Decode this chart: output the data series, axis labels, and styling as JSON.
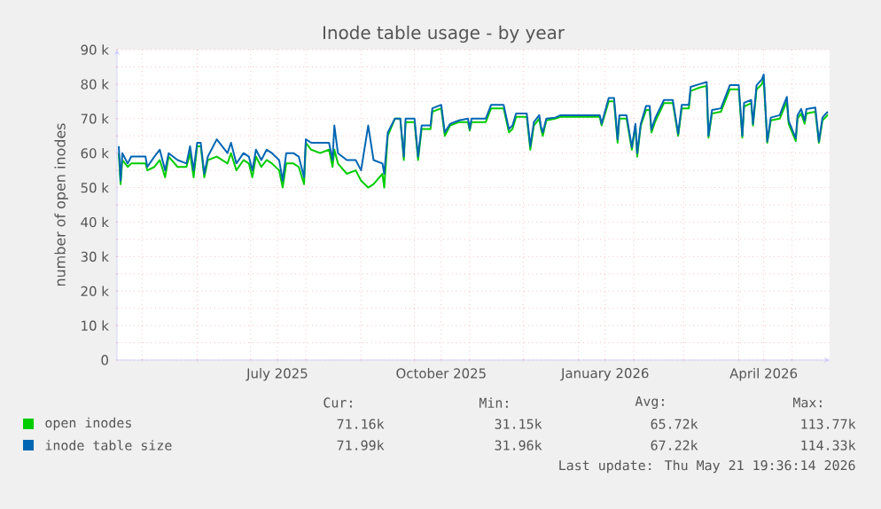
{
  "chart_data": {
    "type": "line",
    "title": "Inode table usage - by year",
    "ylabel": "number of open inodes",
    "xlim": [
      "2025-04-17",
      "2026-05-22"
    ],
    "xticks": [
      {
        "value": "2025-05-01",
        "label": null
      },
      {
        "value": "2025-06-01",
        "label": null
      },
      {
        "value": "2025-07-01",
        "label": null
      },
      {
        "value": "2025-07-16",
        "label": "July 2025"
      },
      {
        "value": "2025-08-01",
        "label": null
      },
      {
        "value": "2025-09-01",
        "label": null
      },
      {
        "value": "2025-10-01",
        "label": null
      },
      {
        "value": "2025-10-16",
        "label": "October 2025"
      },
      {
        "value": "2025-11-01",
        "label": null
      },
      {
        "value": "2025-12-01",
        "label": null
      },
      {
        "value": "2026-01-01",
        "label": null
      },
      {
        "value": "2026-01-16",
        "label": "January 2026"
      },
      {
        "value": "2026-02-01",
        "label": null
      },
      {
        "value": "2026-03-01",
        "label": null
      },
      {
        "value": "2026-04-01",
        "label": null
      },
      {
        "value": "2026-04-15",
        "label": "April 2026"
      },
      {
        "value": "2026-05-01",
        "label": null
      }
    ],
    "ylim": [
      0,
      90000
    ],
    "yticks": [
      {
        "value": 0,
        "label": "0"
      },
      {
        "value": 5000,
        "label": null
      },
      {
        "value": 10000,
        "label": "10 k"
      },
      {
        "value": 15000,
        "label": null
      },
      {
        "value": 20000,
        "label": "20 k"
      },
      {
        "value": 25000,
        "label": null
      },
      {
        "value": 30000,
        "label": "30 k"
      },
      {
        "value": 35000,
        "label": null
      },
      {
        "value": 40000,
        "label": "40 k"
      },
      {
        "value": 45000,
        "label": null
      },
      {
        "value": 50000,
        "label": "50 k"
      },
      {
        "value": 55000,
        "label": null
      },
      {
        "value": 60000,
        "label": "60 k"
      },
      {
        "value": 65000,
        "label": null
      },
      {
        "value": 70000,
        "label": "70 k"
      },
      {
        "value": 75000,
        "label": null
      },
      {
        "value": 80000,
        "label": "80 k"
      },
      {
        "value": 85000,
        "label": null
      },
      {
        "value": 90000,
        "label": "90 k"
      }
    ],
    "grid": true,
    "legend": "bottom",
    "marker": "none",
    "line_style": "solid",
    "x": [
      "2025-04-18",
      "2025-04-19",
      "2025-04-20",
      "2025-04-23",
      "2025-04-25",
      "2025-05-03",
      "2025-05-04",
      "2025-05-08",
      "2025-05-11",
      "2025-05-14",
      "2025-05-16",
      "2025-05-21",
      "2025-05-26",
      "2025-05-28",
      "2025-05-30",
      "2025-06-01",
      "2025-06-03",
      "2025-06-05",
      "2025-06-07",
      "2025-06-12",
      "2025-06-15",
      "2025-06-18",
      "2025-06-20",
      "2025-06-23",
      "2025-06-27",
      "2025-06-30",
      "2025-07-02",
      "2025-07-04",
      "2025-07-07",
      "2025-07-10",
      "2025-07-13",
      "2025-07-17",
      "2025-07-19",
      "2025-07-21",
      "2025-07-25",
      "2025-07-28",
      "2025-07-31",
      "2025-08-01",
      "2025-08-04",
      "2025-08-09",
      "2025-08-14",
      "2025-08-16",
      "2025-08-17",
      "2025-08-19",
      "2025-08-24",
      "2025-08-29",
      "2025-09-01",
      "2025-09-05",
      "2025-09-08",
      "2025-09-13",
      "2025-09-14",
      "2025-09-16",
      "2025-09-20",
      "2025-09-23",
      "2025-09-25",
      "2025-09-26",
      "2025-10-01",
      "2025-10-03",
      "2025-10-05",
      "2025-10-10",
      "2025-10-11",
      "2025-10-16",
      "2025-10-18",
      "2025-10-21",
      "2025-10-26",
      "2025-10-31",
      "2025-11-01",
      "2025-11-02",
      "2025-11-10",
      "2025-11-13",
      "2025-11-20",
      "2025-11-23",
      "2025-11-25",
      "2025-11-27",
      "2025-12-03",
      "2025-12-05",
      "2025-12-07",
      "2025-12-10",
      "2025-12-11",
      "2025-12-12",
      "2025-12-14",
      "2025-12-19",
      "2025-12-22",
      "2026-01-13",
      "2026-01-14",
      "2026-01-18",
      "2026-01-21",
      "2026-01-23",
      "2026-01-24",
      "2026-01-28",
      "2026-01-31",
      "2026-02-02",
      "2026-02-03",
      "2026-02-05",
      "2026-02-08",
      "2026-02-10",
      "2026-02-11",
      "2026-02-13",
      "2026-02-18",
      "2026-02-23",
      "2026-02-26",
      "2026-02-28",
      "2026-03-04",
      "2026-03-05",
      "2026-03-10",
      "2026-03-14",
      "2026-03-15",
      "2026-03-17",
      "2026-03-22",
      "2026-03-27",
      "2026-04-01",
      "2026-04-03",
      "2026-04-04",
      "2026-04-08",
      "2026-04-09",
      "2026-04-11",
      "2026-04-14",
      "2026-04-15",
      "2026-04-17",
      "2026-04-19",
      "2026-04-24",
      "2026-04-26",
      "2026-04-28",
      "2026-04-29",
      "2026-05-01",
      "2026-05-03",
      "2026-05-04",
      "2026-05-06",
      "2026-05-08",
      "2026-05-09",
      "2026-05-14",
      "2026-05-16",
      "2026-05-18",
      "2026-05-20",
      "2026-05-21"
    ],
    "series": [
      {
        "name": "open inodes",
        "color": "#00cc00",
        "values": [
          60000,
          51000,
          58000,
          56000,
          57000,
          57000,
          55000,
          56000,
          58000,
          53000,
          59000,
          56000,
          56000,
          60000,
          53000,
          62000,
          62000,
          53000,
          58000,
          59000,
          58000,
          57000,
          60000,
          55000,
          58000,
          57000,
          53000,
          59000,
          56000,
          58000,
          57000,
          55000,
          50000,
          57000,
          57000,
          56000,
          51000,
          63000,
          61000,
          60000,
          61000,
          56000,
          61000,
          57000,
          54000,
          55000,
          52000,
          50000,
          51000,
          54000,
          50000,
          65000,
          70000,
          70000,
          58000,
          69000,
          69000,
          58000,
          67000,
          67000,
          72000,
          73000,
          65000,
          68000,
          69000,
          69000,
          66500,
          69000,
          69000,
          73000,
          73000,
          66000,
          67000,
          70500,
          70500,
          61000,
          68000,
          70000,
          67000,
          65000,
          69500,
          70000,
          70500,
          70500,
          68000,
          75000,
          75000,
          63000,
          70000,
          70000,
          61000,
          68000,
          59000,
          68000,
          72500,
          72500,
          66000,
          69000,
          74500,
          74500,
          65000,
          73000,
          73000,
          78000,
          79000,
          79500,
          64500,
          71500,
          72000,
          78500,
          78500,
          64500,
          73500,
          74500,
          68000,
          78500,
          80000,
          81500,
          63000,
          69500,
          70000,
          72500,
          75000,
          68500,
          66000,
          63500,
          70000,
          71500,
          68500,
          71500,
          72000,
          63000,
          69500,
          70500,
          71200
        ]
      },
      {
        "name": "inode table size",
        "color": "#0066b3",
        "values": [
          62000,
          52000,
          60000,
          57000,
          59000,
          59000,
          56000,
          59000,
          61000,
          55000,
          60000,
          58000,
          57000,
          62000,
          55000,
          63000,
          63000,
          54000,
          59000,
          64000,
          62000,
          60000,
          63000,
          57000,
          60000,
          59000,
          55000,
          61000,
          58000,
          61000,
          60000,
          58000,
          52000,
          60000,
          60000,
          59000,
          53000,
          64000,
          63000,
          63000,
          63000,
          58000,
          68000,
          60000,
          58000,
          58000,
          55000,
          68000,
          58000,
          57000,
          54000,
          66000,
          70000,
          70000,
          59000,
          70000,
          70000,
          59000,
          68000,
          68000,
          73000,
          74000,
          66000,
          68500,
          69500,
          70000,
          67000,
          70000,
          70000,
          74000,
          74000,
          67000,
          68000,
          71500,
          71500,
          62000,
          69000,
          71000,
          67700,
          66000,
          70000,
          70300,
          71000,
          71000,
          68500,
          76000,
          76000,
          64000,
          71000,
          71000,
          61700,
          68500,
          60000,
          68500,
          73700,
          73700,
          66800,
          70000,
          75400,
          75400,
          65600,
          74000,
          74000,
          79200,
          80000,
          80600,
          65000,
          72500,
          73000,
          79700,
          79700,
          65000,
          74600,
          75400,
          68500,
          79700,
          81400,
          82800,
          63400,
          70300,
          71000,
          73700,
          76300,
          69400,
          66800,
          64300,
          71000,
          72800,
          69400,
          72800,
          73200,
          63400,
          70300,
          71500,
          72000
        ]
      }
    ],
    "annotations": [
      "Cur:",
      "Min:",
      "Avg:",
      "Max:",
      "71.16k",
      "31.15k",
      "65.72k",
      "113.77k",
      "71.99k",
      "31.96k",
      "67.22k",
      "114.33k",
      "Last update: Thu May 21 19:36:14 2026"
    ]
  }
}
